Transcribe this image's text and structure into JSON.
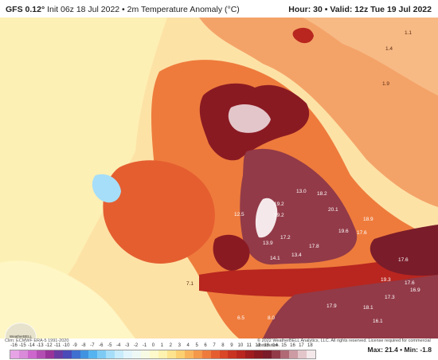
{
  "header": {
    "model": "GFS 0.12°",
    "init": "Init 06z 18 Jul 2022 • 2m Temperature Anomaly (°C)",
    "hour": "Hour: 30 • Valid: 12z Tue 19 Jul 2022"
  },
  "footer": {
    "clim": "Clim: ECMWF ERA-5 1991-2020",
    "copyright": "© 2022 WeatherBELL Analytics, LLC. All rights reserved. License required for commercial distribution.",
    "maxmin": "Max: 21.4 • Min: -1.8",
    "logo": "WeatherBELL"
  },
  "scale": {
    "ticks": [
      "-16",
      "-15",
      "-14",
      "-13",
      "-12",
      "-11",
      "-10",
      "-9",
      "-8",
      "-7",
      "-6",
      "-5",
      "-4",
      "-3",
      "-2",
      "-1",
      "0",
      "1",
      "2",
      "3",
      "4",
      "5",
      "6",
      "7",
      "8",
      "9",
      "10",
      "11",
      "12",
      "13",
      "14",
      "15",
      "16",
      "17",
      "18"
    ],
    "colors": [
      "#e6a3e6",
      "#d98ad9",
      "#cc66cc",
      "#b34db3",
      "#993399",
      "#6a3aa3",
      "#4a4ab8",
      "#3f6fd1",
      "#3f93e0",
      "#55b4ef",
      "#7dcbf5",
      "#a6def9",
      "#c8ecfb",
      "#e2f5fd",
      "#eef8f4",
      "#f8fbe4",
      "#fefacb",
      "#fef2b0",
      "#fde38e",
      "#fcd070",
      "#f9b45b",
      "#f4984a",
      "#ee7b3c",
      "#e55e30",
      "#d94628",
      "#c93322",
      "#b8261f",
      "#a01d1f",
      "#8a1a22",
      "#7a1c2a",
      "#923a48",
      "#b06a76",
      "#cc9ba3",
      "#e3c6ca",
      "#f4e8ea"
    ]
  },
  "map": {
    "anomalies": [
      {
        "v": "1.1",
        "dark": true
      },
      {
        "v": "1.4",
        "dark": true
      },
      {
        "v": "1.9",
        "dark": true
      },
      {
        "v": "13.0"
      },
      {
        "v": "18.2"
      },
      {
        "v": "20.1"
      },
      {
        "v": "19.2"
      },
      {
        "v": "19.2"
      },
      {
        "v": "18.9"
      },
      {
        "v": "17.2"
      },
      {
        "v": "19.6"
      },
      {
        "v": "17.6"
      },
      {
        "v": "13.9"
      },
      {
        "v": "17.8"
      },
      {
        "v": "14.1"
      },
      {
        "v": "13.4"
      },
      {
        "v": "17.6"
      },
      {
        "v": "19.3"
      },
      {
        "v": "17.6"
      },
      {
        "v": "16.9"
      },
      {
        "v": "17.9"
      },
      {
        "v": "18.1"
      },
      {
        "v": "17.3"
      },
      {
        "v": "16.1"
      },
      {
        "v": "8.0"
      },
      {
        "v": "6.5"
      },
      {
        "v": "12.5"
      },
      {
        "v": "7.1"
      }
    ]
  }
}
